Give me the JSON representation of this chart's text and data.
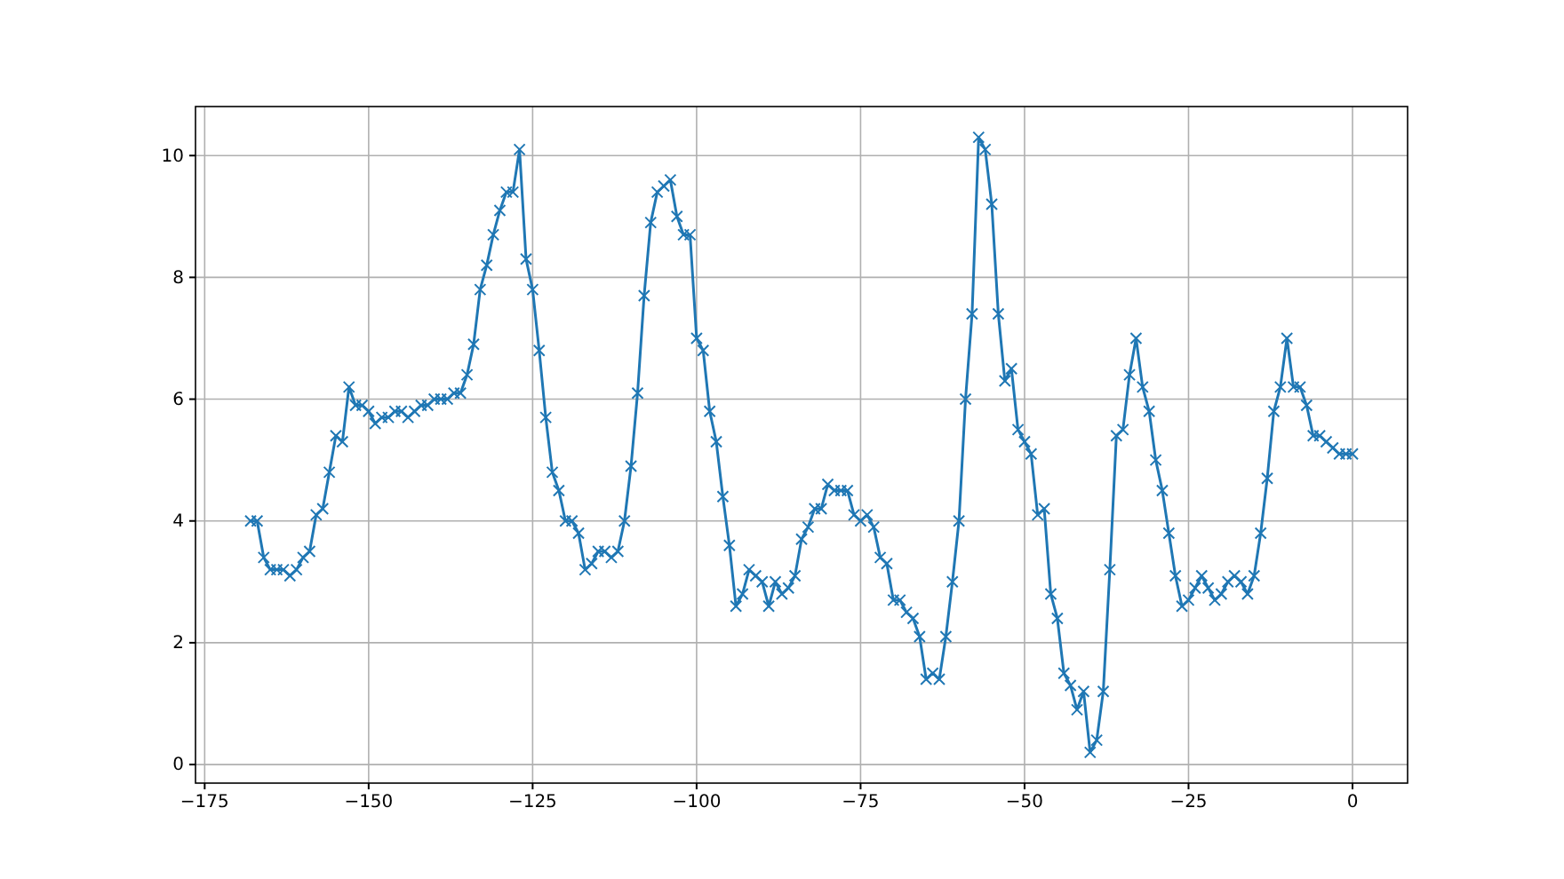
{
  "chart_data": {
    "type": "line",
    "x": [
      -168,
      -167,
      -166,
      -165,
      -164,
      -163,
      -162,
      -161,
      -160,
      -159,
      -158,
      -157,
      -156,
      -155,
      -154,
      -153,
      -152,
      -151,
      -150,
      -149,
      -148,
      -147,
      -146,
      -145,
      -144,
      -143,
      -142,
      -141,
      -140,
      -139,
      -138,
      -137,
      -136,
      -135,
      -134,
      -133,
      -132,
      -131,
      -130,
      -129,
      -128,
      -127,
      -126,
      -125,
      -124,
      -123,
      -122,
      -121,
      -120,
      -119,
      -118,
      -117,
      -116,
      -115,
      -114,
      -113,
      -112,
      -111,
      -110,
      -109,
      -108,
      -107,
      -106,
      -105,
      -104,
      -103,
      -102,
      -101,
      -100,
      -99,
      -98,
      -97,
      -96,
      -95,
      -94,
      -93,
      -92,
      -91,
      -90,
      -89,
      -88,
      -87,
      -86,
      -85,
      -84,
      -83,
      -82,
      -81,
      -80,
      -79,
      -78,
      -77,
      -76,
      -75,
      -74,
      -73,
      -72,
      -71,
      -70,
      -69,
      -68,
      -67,
      -66,
      -65,
      -64,
      -63,
      -62,
      -61,
      -60,
      -59,
      -58,
      -57,
      -56,
      -55,
      -54,
      -53,
      -52,
      -51,
      -50,
      -49,
      -48,
      -47,
      -46,
      -45,
      -44,
      -43,
      -42,
      -41,
      -40,
      -39,
      -38,
      -37,
      -36,
      -35,
      -34,
      -33,
      -32,
      -31,
      -30,
      -29,
      -28,
      -27,
      -26,
      -25,
      -24,
      -23,
      -22,
      -21,
      -20,
      -19,
      -18,
      -17,
      -16,
      -15,
      -14,
      -13,
      -12,
      -11,
      -10,
      -9,
      -8,
      -7,
      -6,
      -5,
      -4,
      -3,
      -2,
      -1,
      0
    ],
    "series": [
      {
        "color": "#1f77b4",
        "values": [
          4.0,
          4.0,
          3.4,
          3.2,
          3.2,
          3.2,
          3.1,
          3.2,
          3.4,
          3.5,
          4.1,
          4.2,
          4.8,
          5.4,
          5.3,
          6.2,
          5.9,
          5.9,
          5.8,
          5.6,
          5.7,
          5.7,
          5.8,
          5.8,
          5.7,
          5.8,
          5.9,
          5.9,
          6.0,
          6.0,
          6.0,
          6.1,
          6.1,
          6.4,
          6.9,
          7.8,
          8.2,
          8.7,
          9.1,
          9.4,
          9.4,
          10.1,
          8.3,
          7.8,
          6.8,
          5.7,
          4.8,
          4.5,
          4.0,
          4.0,
          3.8,
          3.2,
          3.3,
          3.5,
          3.5,
          3.4,
          3.5,
          4.0,
          4.9,
          6.1,
          7.7,
          8.9,
          9.4,
          9.5,
          9.6,
          9.0,
          8.7,
          8.7,
          7.0,
          6.8,
          5.8,
          5.3,
          4.4,
          3.6,
          2.6,
          2.8,
          3.2,
          3.1,
          3.0,
          2.6,
          3.0,
          2.8,
          2.9,
          3.1,
          3.7,
          3.9,
          4.2,
          4.2,
          4.6,
          4.5,
          4.5,
          4.5,
          4.1,
          4.0,
          4.1,
          3.9,
          3.4,
          3.3,
          2.7,
          2.7,
          2.5,
          2.4,
          2.1,
          1.4,
          1.5,
          1.4,
          2.1,
          3.0,
          4.0,
          6.0,
          7.4,
          10.3,
          10.1,
          9.2,
          7.4,
          6.3,
          6.5,
          5.5,
          5.3,
          5.1,
          4.1,
          4.2,
          2.8,
          2.4,
          1.5,
          1.3,
          0.9,
          1.2,
          0.2,
          0.4,
          1.2,
          3.2,
          5.4,
          5.5,
          6.4,
          7.0,
          6.2,
          5.8,
          5.0,
          4.5,
          3.8,
          3.1,
          2.6,
          2.7,
          2.9,
          3.1,
          2.9,
          2.7,
          2.8,
          3.0,
          3.1,
          3.0,
          2.8,
          3.1,
          3.8,
          4.7,
          5.8,
          6.2,
          7.0,
          6.2,
          6.2,
          5.9,
          5.4,
          5.4,
          5.3,
          5.2,
          5.1,
          5.1,
          5.1
        ]
      }
    ],
    "xlim": [
      -176.4,
      8.4
    ],
    "ylim": [
      -0.305,
      10.805
    ],
    "xticks": [
      -175,
      -150,
      -125,
      -100,
      -75,
      -50,
      -25,
      0
    ],
    "yticks": [
      0,
      2,
      4,
      6,
      8,
      10
    ],
    "grid": true,
    "marker": "cross",
    "line_style": "solid"
  }
}
